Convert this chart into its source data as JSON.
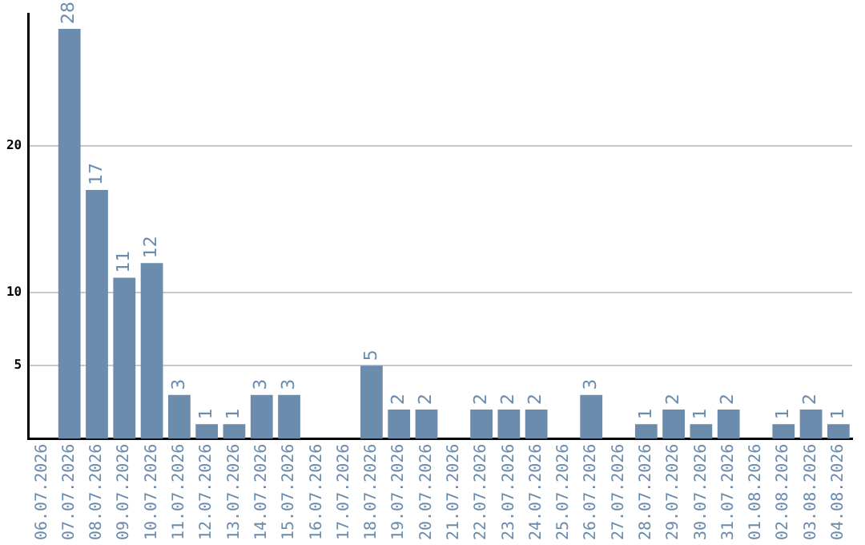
{
  "chart_data": {
    "type": "bar",
    "categories": [
      "06.07.2026",
      "07.07.2026",
      "08.07.2026",
      "09.07.2026",
      "10.07.2026",
      "11.07.2026",
      "12.07.2026",
      "13.07.2026",
      "14.07.2026",
      "15.07.2026",
      "16.07.2026",
      "17.07.2026",
      "18.07.2026",
      "19.07.2026",
      "20.07.2026",
      "21.07.2026",
      "22.07.2026",
      "23.07.2026",
      "24.07.2026",
      "25.07.2026",
      "26.07.2026",
      "27.07.2026",
      "28.07.2026",
      "29.07.2026",
      "30.07.2026",
      "31.07.2026",
      "01.08.2026",
      "02.08.2026",
      "03.08.2026",
      "04.08.2026"
    ],
    "values": [
      null,
      28,
      17,
      11,
      12,
      3,
      1,
      1,
      3,
      3,
      null,
      null,
      5,
      2,
      2,
      null,
      2,
      2,
      2,
      null,
      3,
      null,
      1,
      2,
      1,
      2,
      null,
      1,
      2,
      1
    ],
    "color": "#6b8cad",
    "ylim": [
      0,
      29
    ],
    "yticks": [
      5,
      10,
      20
    ],
    "grid": "y",
    "data_labels": true
  }
}
